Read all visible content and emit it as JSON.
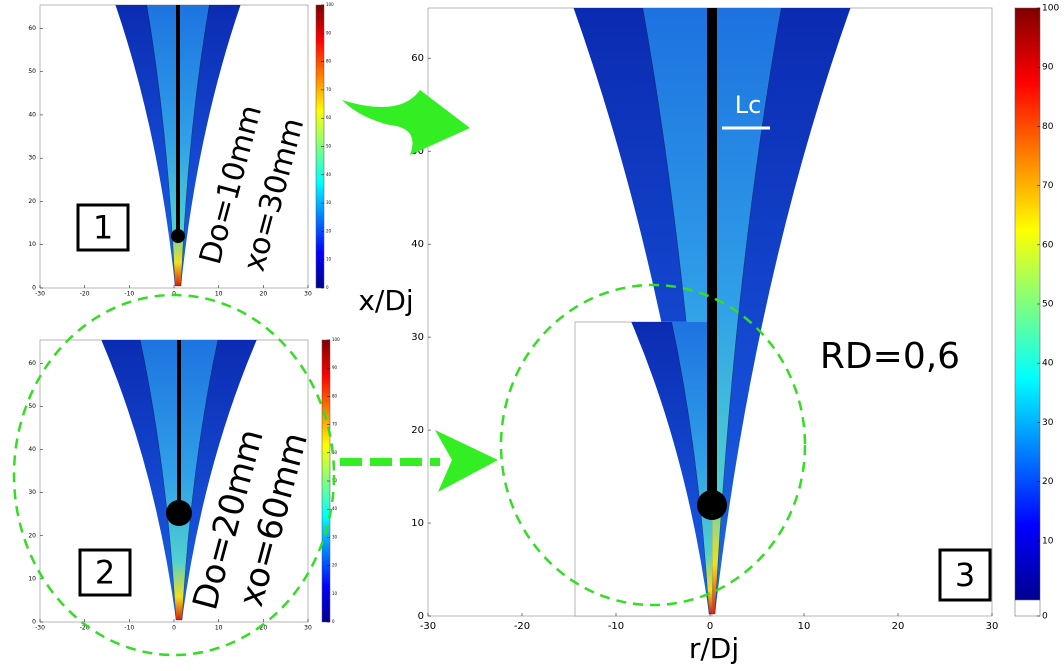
{
  "panels": [
    {
      "label": "1",
      "annotations": [
        "Do=10mm",
        "xo=30mm"
      ],
      "xticks": [
        -30,
        -20,
        -10,
        0,
        10,
        20,
        30
      ],
      "yticks": [
        0,
        10,
        20,
        30,
        40,
        50,
        60
      ],
      "colorbar_ticks": [
        0,
        10,
        20,
        30,
        40,
        50,
        60,
        70,
        80,
        90,
        100
      ]
    },
    {
      "label": "2",
      "annotations": [
        "Do=20mm",
        "xo=60mm"
      ],
      "xticks": [
        -30,
        -20,
        -10,
        0,
        10,
        20,
        30
      ],
      "yticks": [
        0,
        10,
        20,
        30,
        40,
        50,
        60
      ],
      "colorbar_ticks": [
        0,
        10,
        20,
        30,
        40,
        50,
        60,
        70,
        80,
        90,
        100
      ]
    },
    {
      "label": "3",
      "annotations": [
        "RD=0,6",
        "Lc"
      ],
      "x_label": "r/Dj",
      "y_label": "x/Dj",
      "xticks": [
        -30,
        -20,
        -10,
        0,
        10,
        20,
        30
      ],
      "yticks": [
        0,
        10,
        20,
        30,
        40,
        50,
        60
      ],
      "colorbar_ticks": [
        0,
        10,
        20,
        30,
        40,
        50,
        60,
        70,
        80,
        90,
        100
      ]
    }
  ]
}
